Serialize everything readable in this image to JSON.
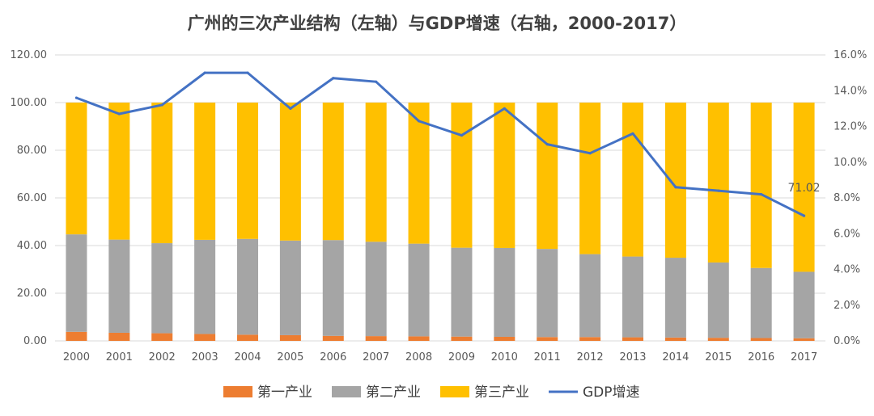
{
  "chart_data": {
    "type": "bar",
    "subtype": "stacked-bar-with-line",
    "title": "广州的三次产业结构（左轴）与GDP增速（右轴，2000-2017）",
    "categories": [
      "2000",
      "2001",
      "2002",
      "2003",
      "2004",
      "2005",
      "2006",
      "2007",
      "2008",
      "2009",
      "2010",
      "2011",
      "2012",
      "2013",
      "2014",
      "2015",
      "2016",
      "2017"
    ],
    "series": [
      {
        "name": "第一产业",
        "axis": "left",
        "kind": "bar",
        "color": "#ED7D31",
        "values": [
          3.8,
          3.4,
          3.2,
          2.9,
          2.6,
          2.4,
          2.1,
          2.0,
          1.9,
          1.8,
          1.7,
          1.6,
          1.6,
          1.5,
          1.4,
          1.3,
          1.2,
          1.1
        ]
      },
      {
        "name": "第二产业",
        "axis": "left",
        "kind": "bar",
        "color": "#A5A5A5",
        "values": [
          40.9,
          39.1,
          37.8,
          39.5,
          40.2,
          39.7,
          40.2,
          39.6,
          38.9,
          37.3,
          37.3,
          37.0,
          34.8,
          33.9,
          33.5,
          31.6,
          29.4,
          27.9
        ]
      },
      {
        "name": "第三产业",
        "axis": "left",
        "kind": "bar",
        "color": "#FFC000",
        "values": [
          55.3,
          57.5,
          59.0,
          57.6,
          57.2,
          57.9,
          57.7,
          58.4,
          59.2,
          60.9,
          61.0,
          61.4,
          63.6,
          64.6,
          65.1,
          67.1,
          69.4,
          71.0
        ]
      },
      {
        "name": "GDP增速",
        "axis": "right",
        "kind": "line",
        "color": "#4472C4",
        "values": [
          13.6,
          12.7,
          13.2,
          15.0,
          15.0,
          13.0,
          14.7,
          14.5,
          12.3,
          11.5,
          13.0,
          11.0,
          10.5,
          11.6,
          8.6,
          8.4,
          8.2,
          7.0
        ]
      }
    ],
    "y_left": {
      "min": 0,
      "max": 120,
      "step": 20,
      "tick_labels": [
        "0.00",
        "20.00",
        "40.00",
        "60.00",
        "80.00",
        "100.00",
        "120.00"
      ]
    },
    "y_right": {
      "min": 0,
      "max": 16,
      "step": 2,
      "tick_labels": [
        "0.0%",
        "2.0%",
        "4.0%",
        "6.0%",
        "8.0%",
        "10.0%",
        "12.0%",
        "14.0%",
        "16.0%"
      ]
    },
    "annotations": [
      {
        "category": "2017",
        "text": "71.02"
      }
    ],
    "legend_position": "bottom",
    "grid": true
  }
}
